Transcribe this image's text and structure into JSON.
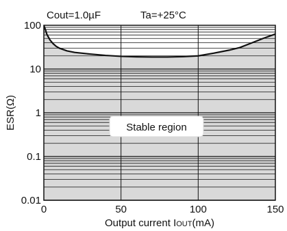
{
  "chart_data": {
    "type": "area",
    "header": {
      "cout": "Cout=1.0µF",
      "ta": "Ta=+25°C"
    },
    "xlabel": "Output current I",
    "xlabel_sub": "OUT",
    "xlabel_unit": "(mA)",
    "ylabel": "ESR(Ω)",
    "xlim": [
      0,
      150
    ],
    "ylim": [
      0.01,
      100
    ],
    "yscale": "log",
    "grid": true,
    "x_ticks": [
      0,
      50,
      100,
      150
    ],
    "x_tick_labels": [
      "0",
      "50",
      "100",
      "150"
    ],
    "y_ticks": [
      0.01,
      0.1,
      1,
      10,
      100
    ],
    "y_tick_labels": [
      "0.01",
      "0.1",
      "1",
      "10",
      "100"
    ],
    "region_label": "Stable region",
    "boundary": {
      "x": [
        0,
        1,
        2,
        4,
        6,
        8,
        10,
        15,
        20,
        30,
        40,
        50,
        60,
        70,
        80,
        90,
        100,
        110,
        120,
        127,
        135,
        142,
        150
      ],
      "y": [
        100,
        80,
        62,
        46,
        38,
        33,
        30,
        26,
        24,
        22,
        20.5,
        19.5,
        19,
        18.8,
        18.8,
        19.2,
        20,
        23,
        27,
        31,
        40,
        50,
        63
      ]
    },
    "colors": {
      "stable_fill": "#d9d9d9",
      "grid": "#111111",
      "curve": "#111111"
    }
  }
}
